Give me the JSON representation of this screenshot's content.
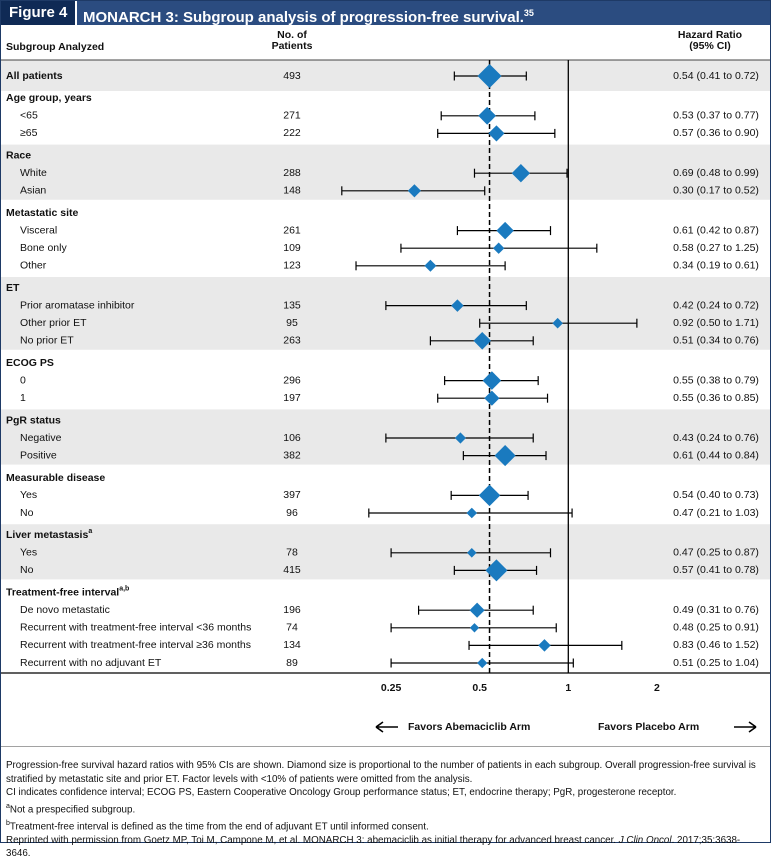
{
  "figure_label": "Figure 4",
  "chart_data": {
    "type": "forest",
    "title": "MONARCH 3: Subgroup analysis of progression-free survival.",
    "title_ref": "35",
    "label_header": "Subgroup Analyzed",
    "n_header": [
      "No. of",
      "Patients"
    ],
    "hr_header": [
      "Hazard Ratio",
      "(95% CI)"
    ],
    "xscale": "log",
    "xlim": [
      0.125,
      4
    ],
    "xticks": [
      0.25,
      0.5,
      1,
      2
    ],
    "reference_line": 1,
    "color": "#1a7abf",
    "shade": "#e9e9e9",
    "x_label_left": "Favors Abemaciclib Arm",
    "x_label_right": "Favors Placebo Arm",
    "overall": {
      "label": "All patients",
      "n": 493,
      "hr": 0.54,
      "lo": 0.41,
      "hi": 0.72,
      "hr_label": "0.54 (0.41 to 0.72)"
    },
    "groups": [
      {
        "name": "Age group, years",
        "rows": [
          {
            "label": "<65",
            "n": 271,
            "hr": 0.53,
            "lo": 0.37,
            "hi": 0.77,
            "hr_label": "0.53 (0.37 to 0.77)"
          },
          {
            "label": "≥65",
            "n": 222,
            "hr": 0.57,
            "lo": 0.36,
            "hi": 0.9,
            "hr_label": "0.57 (0.36 to 0.90)"
          }
        ]
      },
      {
        "name": "Race",
        "rows": [
          {
            "label": "White",
            "n": 288,
            "hr": 0.69,
            "lo": 0.48,
            "hi": 0.99,
            "hr_label": "0.69 (0.48 to 0.99)"
          },
          {
            "label": "Asian",
            "n": 148,
            "hr": 0.3,
            "lo": 0.17,
            "hi": 0.52,
            "hr_label": "0.30 (0.17 to 0.52)"
          }
        ]
      },
      {
        "name": "Metastatic site",
        "rows": [
          {
            "label": "Visceral",
            "n": 261,
            "hr": 0.61,
            "lo": 0.42,
            "hi": 0.87,
            "hr_label": "0.61 (0.42 to 0.87)"
          },
          {
            "label": "Bone only",
            "n": 109,
            "hr": 0.58,
            "lo": 0.27,
            "hi": 1.25,
            "hr_label": "0.58 (0.27 to 1.25)"
          },
          {
            "label": "Other",
            "n": 123,
            "hr": 0.34,
            "lo": 0.19,
            "hi": 0.61,
            "hr_label": "0.34 (0.19 to 0.61)"
          }
        ]
      },
      {
        "name": "ET",
        "rows": [
          {
            "label": "Prior aromatase inhibitor",
            "n": 135,
            "hr": 0.42,
            "lo": 0.24,
            "hi": 0.72,
            "hr_label": "0.42 (0.24 to 0.72)"
          },
          {
            "label": "Other prior ET",
            "n": 95,
            "hr": 0.92,
            "lo": 0.5,
            "hi": 1.71,
            "hr_label": "0.92 (0.50 to 1.71)"
          },
          {
            "label": "No prior ET",
            "n": 263,
            "hr": 0.51,
            "lo": 0.34,
            "hi": 0.76,
            "hr_label": "0.51 (0.34 to 0.76)"
          }
        ]
      },
      {
        "name": "ECOG PS",
        "rows": [
          {
            "label": "0",
            "n": 296,
            "hr": 0.55,
            "lo": 0.38,
            "hi": 0.79,
            "hr_label": "0.55 (0.38 to 0.79)"
          },
          {
            "label": "1",
            "n": 197,
            "hr": 0.55,
            "lo": 0.36,
            "hi": 0.85,
            "hr_label": "0.55 (0.36 to 0.85)"
          }
        ]
      },
      {
        "name": "PgR status",
        "rows": [
          {
            "label": "Negative",
            "n": 106,
            "hr": 0.43,
            "lo": 0.24,
            "hi": 0.76,
            "hr_label": "0.43 (0.24 to 0.76)"
          },
          {
            "label": "Positive",
            "n": 382,
            "hr": 0.61,
            "lo": 0.44,
            "hi": 0.84,
            "hr_label": "0.61 (0.44 to 0.84)"
          }
        ]
      },
      {
        "name": "Measurable disease",
        "rows": [
          {
            "label": "Yes",
            "n": 397,
            "hr": 0.54,
            "lo": 0.4,
            "hi": 0.73,
            "hr_label": "0.54 (0.40 to 0.73)"
          },
          {
            "label": "No",
            "n": 96,
            "hr": 0.47,
            "lo": 0.21,
            "hi": 1.03,
            "hr_label": "0.47 (0.21 to 1.03)"
          }
        ]
      },
      {
        "name": "Liver metastasis",
        "note": "a",
        "rows": [
          {
            "label": "Yes",
            "n": 78,
            "hr": 0.47,
            "lo": 0.25,
            "hi": 0.87,
            "hr_label": "0.47 (0.25 to 0.87)"
          },
          {
            "label": "No",
            "n": 415,
            "hr": 0.57,
            "lo": 0.41,
            "hi": 0.78,
            "hr_label": "0.57 (0.41 to 0.78)"
          }
        ]
      },
      {
        "name": "Treatment-free interval",
        "note": "a,b",
        "rows": [
          {
            "label": "De novo metastatic",
            "n": 196,
            "hr": 0.49,
            "lo": 0.31,
            "hi": 0.76,
            "hr_label": "0.49 (0.31 to 0.76)"
          },
          {
            "label": "Recurrent with treatment-free interval <36 months",
            "n": 74,
            "hr": 0.48,
            "lo": 0.25,
            "hi": 0.91,
            "hr_label": "0.48 (0.25 to 0.91)"
          },
          {
            "label": "Recurrent with treatment-free interval ≥36 months",
            "n": 134,
            "hr": 0.83,
            "lo": 0.46,
            "hi": 1.52,
            "hr_label": "0.83 (0.46 to 1.52)"
          },
          {
            "label": "Recurrent with no adjuvant ET",
            "n": 89,
            "hr": 0.51,
            "lo": 0.25,
            "hi": 1.04,
            "hr_label": "0.51 (0.25 to 1.04)"
          }
        ]
      }
    ]
  },
  "footnotes": [
    {
      "text": "Progression-free survival hazard ratios with 95% CIs are shown. Diamond size is proportional to the number of patients in each subgroup. Overall progression-free survival is stratified by metastatic site and prior ET. Factor levels with <10% of patients were omitted from the analysis."
    },
    {
      "text": "CI indicates confidence interval; ECOG PS, Eastern Cooperative Oncology Group performance status; ET, endocrine therapy; PgR, progesterone receptor."
    },
    {
      "mark": "a",
      "text": "Not a prespecified subgroup."
    },
    {
      "mark": "b",
      "text": "Treatment-free interval is defined as the time from the end of adjuvant ET until informed consent."
    },
    {
      "text": "Reprinted with permission from Goetz MP, Toi M, Campone M, et al. MONARCH 3: abemaciclib as initial therapy for advanced breast cancer. ",
      "italic": "J Clin Oncol",
      "after": ". 2017;35:3638-3646."
    }
  ]
}
